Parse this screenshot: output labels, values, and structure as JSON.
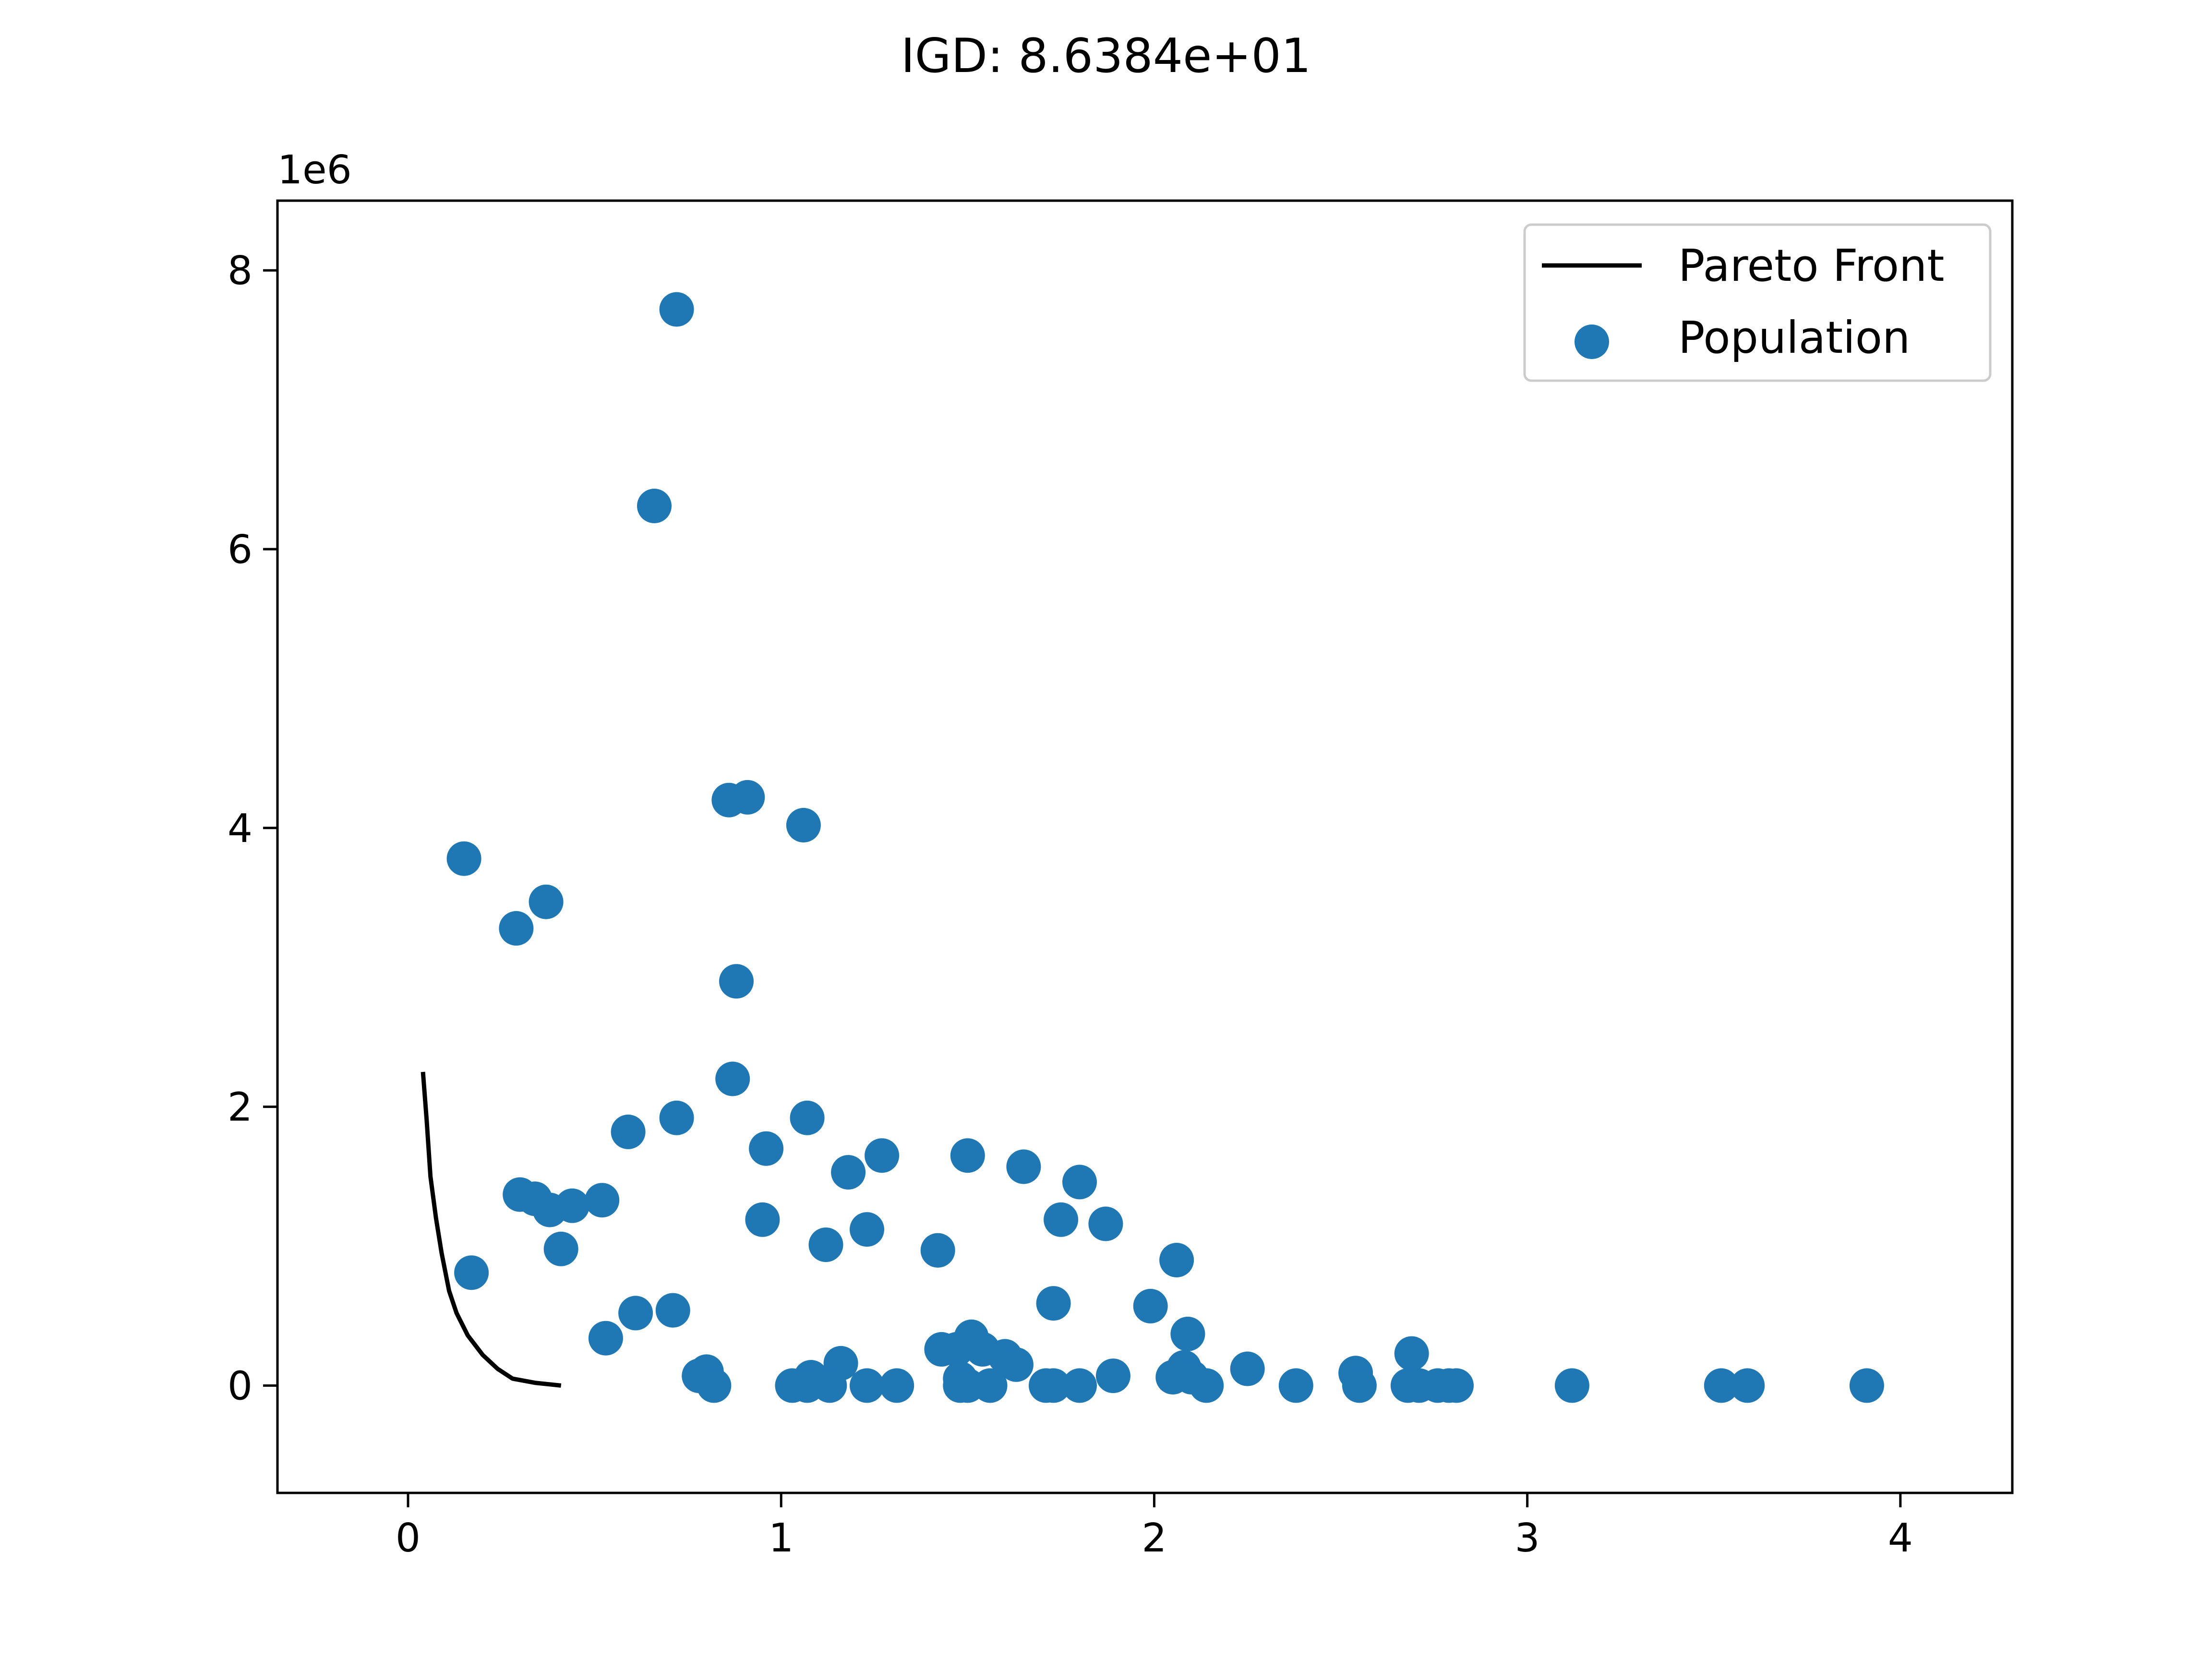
{
  "chart_data": {
    "type": "scatter",
    "title": "IGD: 8.6384e+01",
    "xlabel": "",
    "ylabel": "",
    "y_offset_text": "1e6",
    "y_scale": 1000000,
    "xlim": [
      -0.35,
      4.3
    ],
    "ylim": [
      -0.77,
      8.5
    ],
    "x_ticks": [
      0,
      1,
      2,
      3,
      4
    ],
    "x_tick_labels": [
      "0",
      "1",
      "2",
      "3",
      "4"
    ],
    "y_ticks": [
      0,
      2,
      4,
      6,
      8
    ],
    "y_tick_labels": [
      "0",
      "2",
      "4",
      "6",
      "8"
    ],
    "grid": false,
    "legend_position": "upper right",
    "colors": {
      "front": "#000000",
      "population": "#1f77b4"
    },
    "series": [
      {
        "name": "Pareto Front",
        "kind": "line",
        "points": [
          [
            0.04,
            2.25
          ],
          [
            0.05,
            1.9
          ],
          [
            0.06,
            1.5
          ],
          [
            0.075,
            1.2
          ],
          [
            0.09,
            0.95
          ],
          [
            0.11,
            0.68
          ],
          [
            0.13,
            0.52
          ],
          [
            0.16,
            0.36
          ],
          [
            0.2,
            0.22
          ],
          [
            0.24,
            0.12
          ],
          [
            0.28,
            0.05
          ],
          [
            0.34,
            0.02
          ],
          [
            0.41,
            0.0
          ]
        ]
      },
      {
        "name": "Population",
        "kind": "scatter",
        "points": [
          [
            0.72,
            7.72
          ],
          [
            0.66,
            6.31
          ],
          [
            0.86,
            4.2
          ],
          [
            0.91,
            4.22
          ],
          [
            1.06,
            4.02
          ],
          [
            0.15,
            3.78
          ],
          [
            0.37,
            3.47
          ],
          [
            0.29,
            3.28
          ],
          [
            0.88,
            2.9
          ],
          [
            0.87,
            2.2
          ],
          [
            1.07,
            1.92
          ],
          [
            0.72,
            1.92
          ],
          [
            0.59,
            1.82
          ],
          [
            0.96,
            1.7
          ],
          [
            1.27,
            1.65
          ],
          [
            1.5,
            1.65
          ],
          [
            1.65,
            1.57
          ],
          [
            1.18,
            1.53
          ],
          [
            1.8,
            1.46
          ],
          [
            0.3,
            1.37
          ],
          [
            0.34,
            1.34
          ],
          [
            0.44,
            1.29
          ],
          [
            0.38,
            1.26
          ],
          [
            0.52,
            1.33
          ],
          [
            0.95,
            1.19
          ],
          [
            1.75,
            1.19
          ],
          [
            1.87,
            1.16
          ],
          [
            1.23,
            1.12
          ],
          [
            1.12,
            1.01
          ],
          [
            0.41,
            0.98
          ],
          [
            1.42,
            0.97
          ],
          [
            2.06,
            0.9
          ],
          [
            0.17,
            0.81
          ],
          [
            1.73,
            0.59
          ],
          [
            1.99,
            0.57
          ],
          [
            0.71,
            0.54
          ],
          [
            0.61,
            0.52
          ],
          [
            2.09,
            0.37
          ],
          [
            0.53,
            0.34
          ],
          [
            1.51,
            0.35
          ],
          [
            1.43,
            0.26
          ],
          [
            1.47,
            0.26
          ],
          [
            1.54,
            0.26
          ],
          [
            1.6,
            0.21
          ],
          [
            1.63,
            0.15
          ],
          [
            1.16,
            0.16
          ],
          [
            2.69,
            0.23
          ],
          [
            0.8,
            0.1
          ],
          [
            0.78,
            0.07
          ],
          [
            1.48,
            0.05
          ],
          [
            1.08,
            0.06
          ],
          [
            2.05,
            0.06
          ],
          [
            2.08,
            0.13
          ],
          [
            2.1,
            0.06
          ],
          [
            2.25,
            0.12
          ],
          [
            2.54,
            0.09
          ],
          [
            1.89,
            0.07
          ],
          [
            0.82,
            0.0
          ],
          [
            1.03,
            0.0
          ],
          [
            1.07,
            0.0
          ],
          [
            1.13,
            0.0
          ],
          [
            1.23,
            0.0
          ],
          [
            1.31,
            0.0
          ],
          [
            1.48,
            0.0
          ],
          [
            1.5,
            0.0
          ],
          [
            1.56,
            0.0
          ],
          [
            1.71,
            0.0
          ],
          [
            1.73,
            0.0
          ],
          [
            1.8,
            0.0
          ],
          [
            2.14,
            0.0
          ],
          [
            2.38,
            0.0
          ],
          [
            2.55,
            0.0
          ],
          [
            2.68,
            0.0
          ],
          [
            2.71,
            0.0
          ],
          [
            2.76,
            0.0
          ],
          [
            2.79,
            0.0
          ],
          [
            2.81,
            0.0
          ],
          [
            3.12,
            0.0
          ],
          [
            3.52,
            0.0
          ],
          [
            3.59,
            0.0
          ],
          [
            3.91,
            0.0
          ]
        ]
      }
    ]
  }
}
